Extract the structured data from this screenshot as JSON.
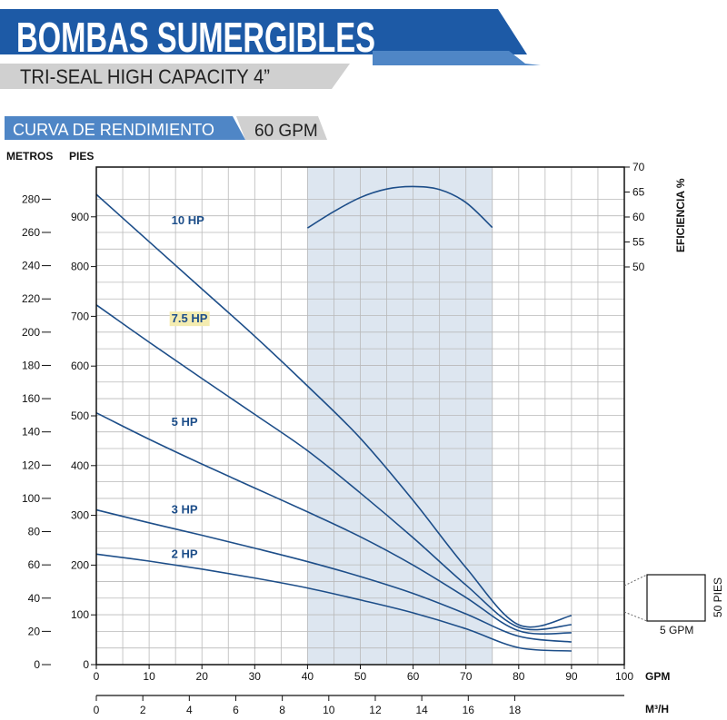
{
  "header": {
    "title": "BOMBAS SUMERGIBLES",
    "subtitle": "TRI-SEAL HIGH CAPACITY 4”",
    "section_label": "CURVA DE RENDIMIENTO",
    "flow_rating": "60 GPM",
    "colors": {
      "banner": "#1d5aa6",
      "banner_light": "#4f86c6",
      "subtitle_bg": "#d0d0d0",
      "section_bg": "#4f86c6"
    }
  },
  "chart_data": {
    "type": "line",
    "left_axis_1": {
      "label": "METROS",
      "range": [
        0,
        280
      ],
      "ticks": [
        0,
        20,
        40,
        60,
        80,
        100,
        120,
        140,
        160,
        180,
        200,
        220,
        240,
        260,
        280
      ]
    },
    "left_axis_2": {
      "label": "PIES",
      "range": [
        0,
        1000
      ],
      "ticks": [
        0,
        100,
        200,
        300,
        400,
        500,
        600,
        700,
        800,
        900
      ]
    },
    "right_axis": {
      "label": "EFICIENCIA %",
      "ticks": [
        50,
        55,
        60,
        65,
        70
      ]
    },
    "x_axis": {
      "label": "GPM",
      "range": [
        0,
        100
      ],
      "ticks": [
        0,
        10,
        20,
        30,
        40,
        50,
        60,
        70,
        80,
        90,
        100
      ]
    },
    "x_axis_2": {
      "label": "M³/H",
      "range": [
        0,
        22.7
      ],
      "ticks": [
        0,
        2,
        4,
        6,
        8,
        10,
        12,
        14,
        16,
        18
      ]
    },
    "highlight_band": {
      "x_range": [
        40,
        75
      ],
      "color": "#dde6f0"
    },
    "grid": true,
    "series": [
      {
        "name": "10 HP",
        "label_at": [
          7,
          900
        ],
        "x": [
          0,
          10,
          20,
          30,
          40,
          50,
          60,
          70,
          80,
          90
        ],
        "y": [
          945,
          850,
          755,
          660,
          560,
          455,
          330,
          195,
          80,
          10
        ]
      },
      {
        "name": "7.5 HP",
        "label_at": [
          7,
          695
        ],
        "highlight": true,
        "x": [
          0,
          10,
          20,
          30,
          40,
          50,
          60,
          70,
          80,
          90
        ],
        "y": [
          723,
          648,
          575,
          503,
          430,
          345,
          255,
          160,
          75,
          0
        ]
      },
      {
        "name": "5 HP",
        "label_at": [
          7,
          487
        ],
        "x": [
          0,
          10,
          20,
          30,
          40,
          50,
          60,
          70,
          80,
          90
        ],
        "y": [
          506,
          453,
          403,
          355,
          307,
          257,
          200,
          135,
          68,
          0
        ]
      },
      {
        "name": "3 HP",
        "label_at": [
          7,
          311
        ],
        "x": [
          0,
          10,
          20,
          30,
          40,
          50,
          60,
          70,
          80,
          90
        ],
        "y": [
          311,
          285,
          260,
          234,
          207,
          177,
          143,
          102,
          57,
          -37
        ]
      },
      {
        "name": "2 HP",
        "label_at": [
          7,
          222
        ],
        "x": [
          0,
          10,
          20,
          30,
          40,
          50,
          60,
          70,
          80,
          90
        ],
        "y": [
          222,
          208,
          192,
          174,
          154,
          130,
          104,
          72,
          34,
          -65
        ]
      }
    ],
    "efficiency": {
      "x": [
        40,
        45,
        50,
        55,
        60,
        65,
        70,
        75
      ],
      "y": [
        57.8,
        61.1,
        63.9,
        65.6,
        66.1,
        65.5,
        62.9,
        57.9
      ]
    },
    "scale_legend": {
      "height_label": "50 PIES",
      "width_label": "5 GPM"
    }
  }
}
